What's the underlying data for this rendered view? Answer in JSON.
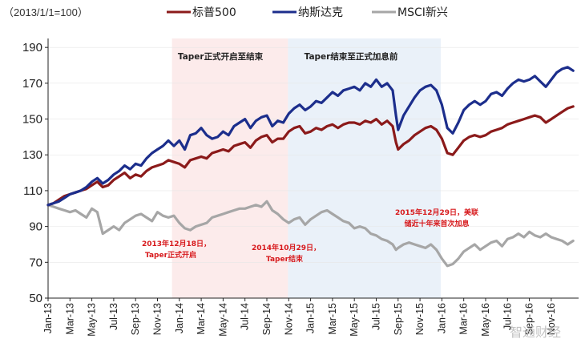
{
  "chart_data": {
    "type": "line",
    "unit_label": "（2013/1/1=100）",
    "ylim": [
      50,
      195
    ],
    "yticks": [
      50,
      70,
      90,
      110,
      130,
      150,
      170,
      190
    ],
    "xlim": [
      0,
      48.5
    ],
    "xticks": [
      {
        "label": "Jan-13",
        "pos": 0
      },
      {
        "label": "Mar-13",
        "pos": 2
      },
      {
        "label": "May-13",
        "pos": 4
      },
      {
        "label": "Jul-13",
        "pos": 6
      },
      {
        "label": "Sep-13",
        "pos": 8
      },
      {
        "label": "Nov-13",
        "pos": 10
      },
      {
        "label": "Jan-14",
        "pos": 12
      },
      {
        "label": "Mar-14",
        "pos": 14
      },
      {
        "label": "May-14",
        "pos": 16
      },
      {
        "label": "Jul-14",
        "pos": 18
      },
      {
        "label": "Sep-14",
        "pos": 20
      },
      {
        "label": "Nov-14",
        "pos": 22
      },
      {
        "label": "Jan-15",
        "pos": 24
      },
      {
        "label": "Mar-15",
        "pos": 26
      },
      {
        "label": "May-15",
        "pos": 28
      },
      {
        "label": "Jul-15",
        "pos": 30
      },
      {
        "label": "Sep-15",
        "pos": 32
      },
      {
        "label": "Nov-15",
        "pos": 34
      },
      {
        "label": "Jan-16",
        "pos": 36
      },
      {
        "label": "Mar-16",
        "pos": 38
      },
      {
        "label": "May-16",
        "pos": 40
      },
      {
        "label": "Jul-16",
        "pos": 42
      },
      {
        "label": "Sep-16",
        "pos": 44
      },
      {
        "label": "Nov-16",
        "pos": 46
      }
    ],
    "series": [
      {
        "name": "标普500",
        "color": "#8b1a1a",
        "x": [
          0,
          0.5,
          1,
          1.5,
          2,
          2.5,
          3,
          3.5,
          4,
          4.5,
          5,
          5.5,
          6,
          6.5,
          7,
          7.5,
          8,
          8.5,
          9,
          9.5,
          10,
          10.5,
          11,
          11.5,
          12,
          12.5,
          13,
          13.5,
          14,
          14.5,
          15,
          15.5,
          16,
          16.5,
          17,
          17.5,
          18,
          18.5,
          19,
          19.5,
          20,
          20.5,
          21,
          21.5,
          22,
          22.5,
          23,
          23.5,
          24,
          24.5,
          25,
          25.5,
          26,
          26.5,
          27,
          27.5,
          28,
          28.5,
          29,
          29.5,
          30,
          30.5,
          31,
          31.5,
          31.8,
          32,
          32.5,
          33,
          33.5,
          34,
          34.5,
          35,
          35.5,
          36,
          36.5,
          37,
          37.5,
          38,
          38.5,
          39,
          39.5,
          40,
          40.5,
          41,
          41.5,
          42,
          42.5,
          43,
          43.5,
          44,
          44.5,
          45,
          45.5,
          46,
          46.5,
          47,
          47.5,
          48
        ],
        "y": [
          102,
          103,
          105,
          107,
          108,
          109,
          110,
          111,
          113,
          115,
          112,
          113,
          116,
          118,
          120,
          117,
          119,
          118,
          121,
          123,
          124,
          125,
          127,
          126,
          125,
          123,
          127,
          128,
          129,
          128,
          131,
          132,
          133,
          132,
          135,
          136,
          137,
          134,
          138,
          140,
          141,
          137,
          139,
          139,
          143,
          145,
          146,
          142,
          143,
          145,
          144,
          146,
          147,
          145,
          147,
          148,
          148,
          147,
          149,
          148,
          150,
          147,
          149,
          146,
          137,
          133,
          136,
          138,
          141,
          143,
          145,
          146,
          144,
          139,
          131,
          130,
          134,
          138,
          140,
          141,
          140,
          141,
          143,
          144,
          145,
          147,
          148,
          149,
          150,
          151,
          152,
          151,
          148,
          150,
          152,
          154,
          156,
          157
        ]
      },
      {
        "name": "纳斯达克",
        "color": "#1c2e8c",
        "x": [
          0,
          0.5,
          1,
          1.5,
          2,
          2.5,
          3,
          3.5,
          4,
          4.5,
          5,
          5.5,
          6,
          6.5,
          7,
          7.5,
          8,
          8.5,
          9,
          9.5,
          10,
          10.5,
          11,
          11.5,
          12,
          12.5,
          13,
          13.5,
          14,
          14.5,
          15,
          15.5,
          16,
          16.5,
          17,
          17.5,
          18,
          18.5,
          19,
          19.5,
          20,
          20.5,
          21,
          21.5,
          22,
          22.5,
          23,
          23.5,
          24,
          24.5,
          25,
          25.5,
          26,
          26.5,
          27,
          27.5,
          28,
          28.5,
          29,
          29.5,
          30,
          30.5,
          31,
          31.5,
          31.8,
          32,
          32.5,
          33,
          33.5,
          34,
          34.5,
          35,
          35.5,
          36,
          36.5,
          37,
          37.5,
          38,
          38.5,
          39,
          39.5,
          40,
          40.5,
          41,
          41.5,
          42,
          42.5,
          43,
          43.5,
          44,
          44.5,
          45,
          45.5,
          46,
          46.5,
          47,
          47.5,
          48
        ],
        "y": [
          102,
          103,
          104,
          106,
          108,
          109,
          110,
          112,
          115,
          117,
          114,
          116,
          119,
          121,
          124,
          122,
          125,
          124,
          128,
          131,
          133,
          135,
          138,
          135,
          138,
          133,
          141,
          142,
          145,
          141,
          139,
          140,
          143,
          141,
          146,
          148,
          150,
          145,
          149,
          151,
          152,
          146,
          149,
          148,
          153,
          156,
          158,
          155,
          157,
          160,
          159,
          162,
          165,
          163,
          166,
          167,
          168,
          166,
          170,
          168,
          172,
          168,
          170,
          166,
          152,
          144,
          152,
          157,
          162,
          166,
          168,
          169,
          166,
          158,
          145,
          142,
          148,
          155,
          158,
          160,
          158,
          160,
          164,
          165,
          163,
          167,
          170,
          172,
          171,
          172,
          174,
          171,
          168,
          172,
          176,
          178,
          179,
          177
        ]
      },
      {
        "name": "MSCI新兴",
        "color": "#a6a6a6",
        "x": [
          0,
          0.5,
          1,
          1.5,
          2,
          2.5,
          3,
          3.5,
          4,
          4.5,
          5,
          5.5,
          6,
          6.5,
          7,
          7.5,
          8,
          8.5,
          9,
          9.5,
          10,
          10.5,
          11,
          11.5,
          12,
          12.5,
          13,
          13.5,
          14,
          14.5,
          15,
          15.5,
          16,
          16.5,
          17,
          17.5,
          18,
          18.5,
          19,
          19.5,
          20,
          20.5,
          21,
          21.5,
          22,
          22.5,
          23,
          23.5,
          24,
          24.5,
          25,
          25.5,
          26,
          26.5,
          27,
          27.5,
          28,
          28.5,
          29,
          29.5,
          30,
          30.5,
          31,
          31.5,
          31.8,
          32,
          32.5,
          33,
          33.5,
          34,
          34.5,
          35,
          35.5,
          36,
          36.5,
          37,
          37.5,
          38,
          38.5,
          39,
          39.5,
          40,
          40.5,
          41,
          41.5,
          42,
          42.5,
          43,
          43.5,
          44,
          44.5,
          45,
          45.5,
          46,
          46.5,
          47,
          47.5,
          48
        ],
        "y": [
          102,
          101,
          100,
          99,
          98,
          99,
          97,
          95,
          100,
          98,
          86,
          88,
          90,
          88,
          92,
          94,
          96,
          97,
          95,
          93,
          98,
          96,
          95,
          96,
          92,
          89,
          88,
          90,
          91,
          92,
          95,
          96,
          97,
          98,
          99,
          100,
          100,
          101,
          102,
          101,
          104,
          99,
          97,
          94,
          92,
          94,
          95,
          91,
          94,
          96,
          98,
          99,
          97,
          95,
          93,
          92,
          89,
          90,
          89,
          86,
          85,
          83,
          82,
          80,
          77,
          78,
          80,
          81,
          80,
          79,
          78,
          80,
          77,
          72,
          68,
          69,
          72,
          76,
          78,
          80,
          77,
          79,
          81,
          82,
          79,
          83,
          84,
          86,
          84,
          87,
          85,
          84,
          86,
          84,
          83,
          82,
          80,
          82
        ]
      }
    ],
    "bands": [
      {
        "label": "Taper正式开启至结束",
        "from": 11.33,
        "to": 21.93,
        "fill": "#fcebeb"
      },
      {
        "label": "Taper结束至正式加息前",
        "from": 21.93,
        "to": 35.9,
        "fill": "#eaf1f9"
      }
    ],
    "annotations": [
      {
        "lines": [
          "2013年12月18日，",
          "Taper正式开启"
        ]
      },
      {
        "lines": [
          "2014年10月29日，",
          "Taper结束"
        ]
      },
      {
        "lines": [
          "2015年12月29日，美联",
          "储近十年来首次加息"
        ]
      }
    ],
    "watermark": "智通财经"
  }
}
